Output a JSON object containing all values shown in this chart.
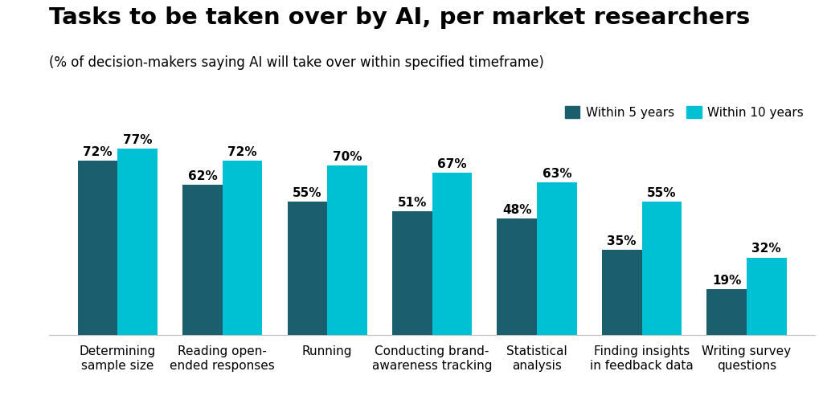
{
  "title": "Tasks to be taken over by AI, per market researchers",
  "subtitle": "(% of decision-makers saying AI will take over within specified timeframe)",
  "categories": [
    "Determining\nsample size",
    "Reading open-\nended responses",
    "Running",
    "Conducting brand-\nawareness tracking",
    "Statistical\nanalysis",
    "Finding insights\nin feedback data",
    "Writing survey\nquestions"
  ],
  "within_5_years": [
    72,
    62,
    55,
    51,
    48,
    35,
    19
  ],
  "within_10_years": [
    77,
    72,
    70,
    67,
    63,
    55,
    32
  ],
  "color_5years": "#1b5e6e",
  "color_10years": "#00c0d4",
  "background_color": "#ffffff",
  "legend_5years": "Within 5 years",
  "legend_10years": "Within 10 years",
  "ylim": [
    0,
    88
  ],
  "bar_width": 0.38,
  "title_fontsize": 21,
  "subtitle_fontsize": 12,
  "label_fontsize": 11,
  "value_fontsize": 11,
  "legend_fontsize": 11
}
